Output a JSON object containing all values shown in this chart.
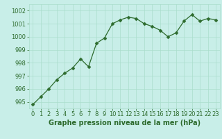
{
  "x": [
    0,
    1,
    2,
    3,
    4,
    5,
    6,
    7,
    8,
    9,
    10,
    11,
    12,
    13,
    14,
    15,
    16,
    17,
    18,
    19,
    20,
    21,
    22,
    23
  ],
  "y": [
    994.8,
    995.4,
    996.0,
    996.7,
    997.2,
    997.6,
    998.3,
    997.7,
    999.5,
    999.9,
    1001.0,
    1001.3,
    1001.5,
    1001.4,
    1001.0,
    1000.8,
    1000.5,
    1000.0,
    1000.3,
    1001.2,
    1001.7,
    1001.2,
    1001.4,
    1001.3
  ],
  "line_color": "#2d6b2d",
  "marker": "D",
  "marker_size": 2.5,
  "bg_color": "#c8eee8",
  "grid_color": "#aaddcc",
  "xlabel": "Graphe pression niveau de la mer (hPa)",
  "ylabel": "",
  "xlim": [
    -0.5,
    23.5
  ],
  "ylim": [
    994.5,
    1002.5
  ],
  "yticks": [
    995,
    996,
    997,
    998,
    999,
    1000,
    1001,
    1002
  ],
  "xticks": [
    0,
    1,
    2,
    3,
    4,
    5,
    6,
    7,
    8,
    9,
    10,
    11,
    12,
    13,
    14,
    15,
    16,
    17,
    18,
    19,
    20,
    21,
    22,
    23
  ],
  "xlabel_fontsize": 7.0,
  "tick_fontsize": 6.0,
  "tick_color": "#2d6b2d",
  "xlabel_color": "#2d6b2d",
  "xlabel_bold": true
}
